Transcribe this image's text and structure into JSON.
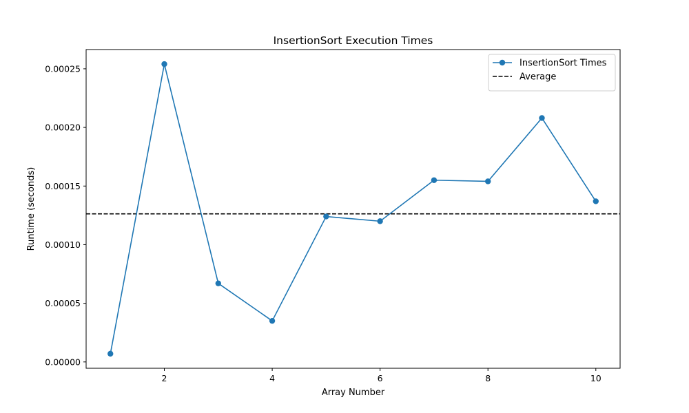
{
  "chart_data": {
    "type": "line",
    "title": "InsertionSort Execution Times",
    "xlabel": "Array Number",
    "ylabel": "Runtime (seconds)",
    "x": [
      1,
      2,
      3,
      4,
      5,
      6,
      7,
      8,
      9,
      10
    ],
    "series": [
      {
        "name": "InsertionSort Times",
        "values": [
          7e-06,
          0.000254,
          6.7e-05,
          3.5e-05,
          0.000124,
          0.00012,
          0.000155,
          0.000154,
          0.000208,
          0.000137
        ],
        "color": "#1f77b4",
        "marker": "circle"
      }
    ],
    "reference_lines": [
      {
        "name": "Average",
        "value": 0.0001263,
        "color": "#000000",
        "style": "dashed"
      }
    ],
    "xticks": [
      2,
      4,
      6,
      8,
      10
    ],
    "xtick_labels": [
      "2",
      "4",
      "6",
      "8",
      "10"
    ],
    "yticks": [
      0,
      5e-05,
      0.0001,
      0.00015,
      0.0002,
      0.00025
    ],
    "ytick_labels": [
      "0.00000",
      "0.00005",
      "0.00010",
      "0.00015",
      "0.00020",
      "0.00025"
    ],
    "xlim": [
      0.55,
      10.45
    ],
    "ylim": [
      -5.4e-06,
      0.0002664
    ],
    "grid": false,
    "legend_position": "top-right"
  }
}
